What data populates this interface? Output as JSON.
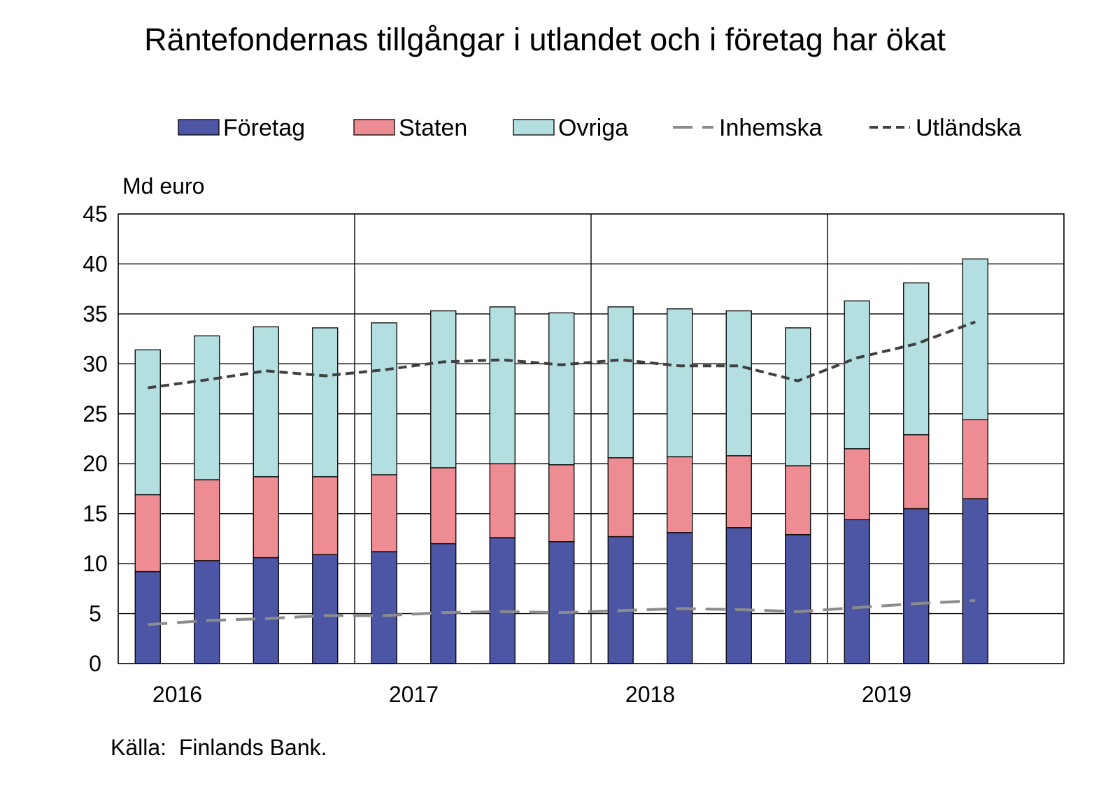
{
  "chart_data": {
    "type": "bar",
    "title": "Räntefondernas tillgångar i utlandet och i företag har ökat",
    "ylabel": "Md euro",
    "ylim": [
      0,
      45
    ],
    "yticks": [
      0,
      5,
      10,
      15,
      20,
      25,
      30,
      35,
      40,
      45
    ],
    "year_labels": [
      "2016",
      "2017",
      "2018",
      "2019"
    ],
    "grid": true,
    "legend_position": "top",
    "categories": [
      "2016Q1",
      "2016Q2",
      "2016Q3",
      "2016Q4",
      "2017Q1",
      "2017Q2",
      "2017Q3",
      "2017Q4",
      "2018Q1",
      "2018Q2",
      "2018Q3",
      "2018Q4",
      "2019Q1",
      "2019Q2",
      "2019Q3"
    ],
    "series": [
      {
        "name": "Företag",
        "kind": "bar-stacked",
        "color": "#4d55a5",
        "values": [
          9.2,
          10.3,
          10.6,
          10.9,
          11.2,
          12.0,
          12.6,
          12.2,
          12.7,
          13.1,
          13.6,
          12.9,
          14.4,
          15.5,
          16.5
        ]
      },
      {
        "name": "Staten",
        "kind": "bar-stacked",
        "color": "#ee8c93",
        "values": [
          7.7,
          8.1,
          8.1,
          7.8,
          7.7,
          7.6,
          7.4,
          7.7,
          7.9,
          7.6,
          7.2,
          6.9,
          7.1,
          7.4,
          7.9
        ]
      },
      {
        "name": "Ovriga",
        "kind": "bar-stacked",
        "color": "#b4dfe1",
        "values": [
          14.5,
          14.4,
          15.0,
          14.9,
          15.2,
          15.7,
          15.7,
          15.2,
          15.1,
          14.8,
          14.5,
          13.8,
          14.8,
          15.2,
          16.1
        ]
      },
      {
        "name": "Inhemska",
        "kind": "line-dashed",
        "color": "#8c8c8c",
        "values": [
          3.9,
          4.3,
          4.5,
          4.8,
          4.8,
          5.1,
          5.2,
          5.1,
          5.3,
          5.5,
          5.4,
          5.2,
          5.6,
          6.0,
          6.3
        ]
      },
      {
        "name": "Utländska",
        "kind": "line-dotted",
        "color": "#404040",
        "values": [
          27.6,
          28.4,
          29.3,
          28.8,
          29.4,
          30.2,
          30.4,
          29.9,
          30.4,
          29.8,
          29.8,
          28.3,
          30.6,
          32.0,
          34.2
        ]
      }
    ],
    "source": "Källa:  Finlands Bank."
  }
}
